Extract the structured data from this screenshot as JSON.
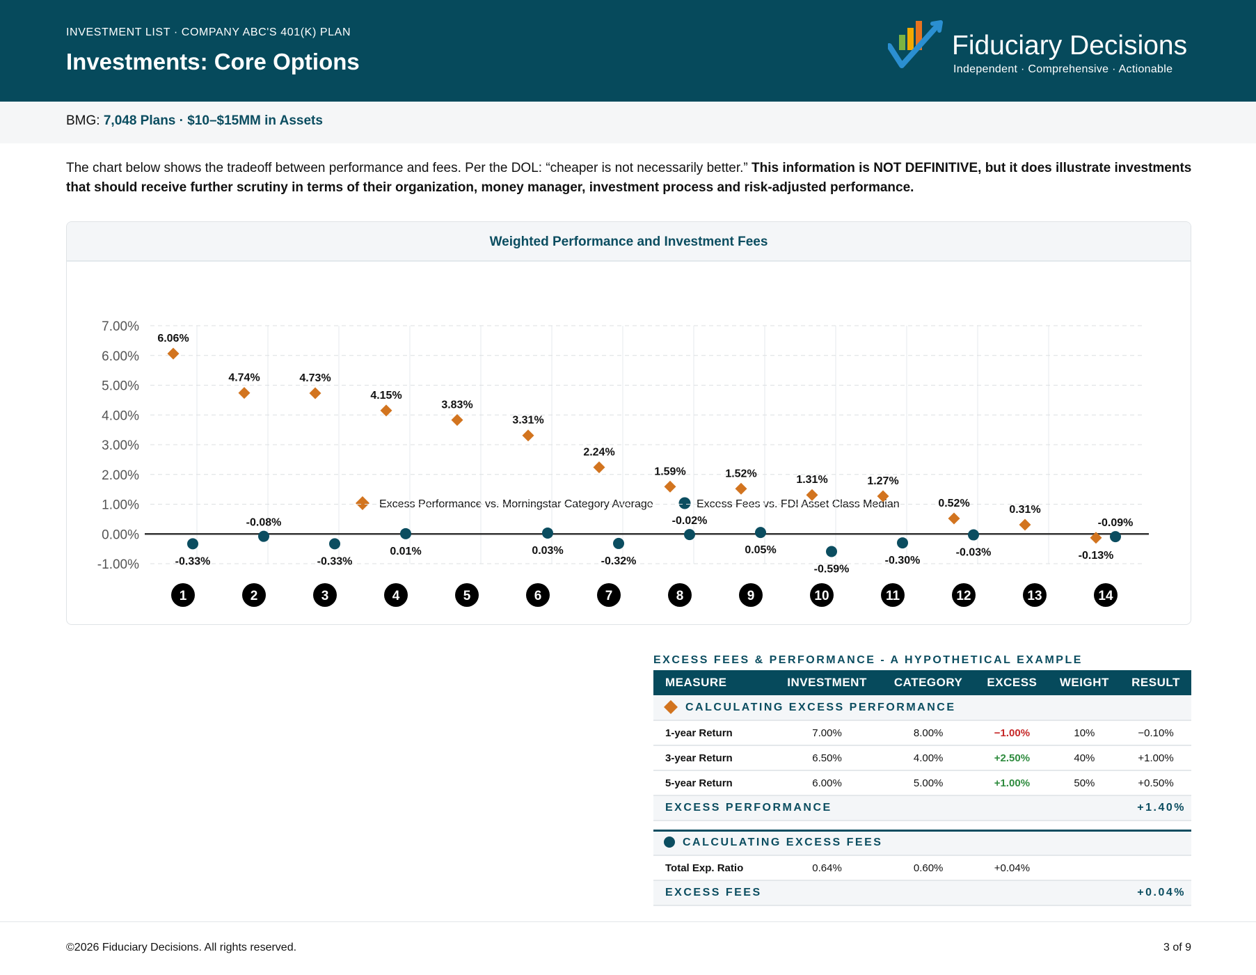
{
  "header": {
    "eyebrow": "INVESTMENT LIST · COMPANY ABC'S 401(K) PLAN",
    "title": "Investments: Core Options",
    "logo": {
      "brand": "Fiduciary Decisions",
      "tagline": "Independent · Comprehensive · Actionable",
      "icon": "checkmark-bars-logo-icon"
    }
  },
  "subbar": {
    "label": "BMG:",
    "highlight": "7,048 Plans · $10–$15MM in Assets"
  },
  "intro": {
    "normal": "The chart below shows the tradeoff between performance and fees. Per the DOL: “cheaper is not necessarily better.” ",
    "bold": "This information is NOT DEFINITIVE, but it does illustrate investments that should receive further scrutiny in terms of their organization, money manager, investment process and risk-adjusted performance."
  },
  "chart_data": {
    "type": "scatter",
    "title": "Weighted Performance and Investment Fees",
    "legend_position": "top-center",
    "grid": true,
    "ylim": [
      -1.0,
      7.0
    ],
    "y_ticks": [
      "7.00%",
      "6.00%",
      "5.00%",
      "4.00%",
      "3.00%",
      "2.00%",
      "1.00%",
      "0.00%",
      "-1.00%"
    ],
    "y_tick_values": [
      7,
      6,
      5,
      4,
      3,
      2,
      1,
      0,
      -1
    ],
    "categories": [
      "1",
      "2",
      "3",
      "4",
      "5",
      "6",
      "7",
      "8",
      "9",
      "10",
      "11",
      "12",
      "13",
      "14"
    ],
    "series": [
      {
        "name": "Excess Performance vs. Morningstar Category Average",
        "marker": "diamond",
        "color": "#d2741f",
        "values": [
          6.06,
          4.74,
          4.73,
          4.15,
          3.83,
          3.31,
          2.24,
          1.59,
          1.52,
          1.31,
          1.27,
          0.52,
          0.31,
          -0.13
        ],
        "labels": [
          "6.06%",
          "4.74%",
          "4.73%",
          "4.15%",
          "3.83%",
          "3.31%",
          "2.24%",
          "1.59%",
          "1.52%",
          "1.31%",
          "1.27%",
          "0.52%",
          "0.31%",
          "-0.13%"
        ]
      },
      {
        "name": "Excess Fees vs. FDI Asset Class Median",
        "marker": "circle",
        "color": "#0b4d60",
        "values": [
          -0.33,
          -0.08,
          -0.33,
          0.01,
          null,
          0.03,
          -0.32,
          -0.02,
          0.05,
          -0.59,
          -0.3,
          -0.03,
          null,
          -0.09
        ],
        "labels": [
          "-0.33%",
          "-0.08%",
          "-0.33%",
          "0.01%",
          "",
          "0.03%",
          "-0.32%",
          "-0.02%",
          "0.05%",
          "-0.59%",
          "-0.30%",
          "-0.03%",
          "",
          "-0.09%"
        ]
      }
    ]
  },
  "example": {
    "title": "EXCESS FEES & PERFORMANCE - A HYPOTHETICAL EXAMPLE",
    "columns": [
      "MEASURE",
      "INVESTMENT",
      "CATEGORY",
      "EXCESS",
      "WEIGHT",
      "RESULT"
    ],
    "perf_section": "CALCULATING EXCESS PERFORMANCE",
    "perf_rows": [
      {
        "measure": "1-year Return",
        "investment": "7.00%",
        "category": "8.00%",
        "excess": "−1.00%",
        "excess_sign": "neg",
        "weight": "10%",
        "result": "−0.10%"
      },
      {
        "measure": "3-year Return",
        "investment": "6.50%",
        "category": "4.00%",
        "excess": "+2.50%",
        "excess_sign": "pos",
        "weight": "40%",
        "result": "+1.00%"
      },
      {
        "measure": "5-year Return",
        "investment": "6.00%",
        "category": "5.00%",
        "excess": "+1.00%",
        "excess_sign": "pos",
        "weight": "50%",
        "result": "+0.50%"
      }
    ],
    "perf_total_label": "EXCESS PERFORMANCE",
    "perf_total_value": "+1.40%",
    "fee_section": "CALCULATING EXCESS FEES",
    "fee_rows": [
      {
        "measure": "Total Exp. Ratio",
        "investment": "0.64%",
        "category": "0.60%",
        "excess": "+0.04%",
        "excess_sign": "",
        "weight": "",
        "result": ""
      }
    ],
    "fee_total_label": "EXCESS FEES",
    "fee_total_value": "+0.04%"
  },
  "footer": {
    "copyright": "©2026 Fiduciary Decisions. All rights reserved.",
    "page": "3 of 9"
  }
}
